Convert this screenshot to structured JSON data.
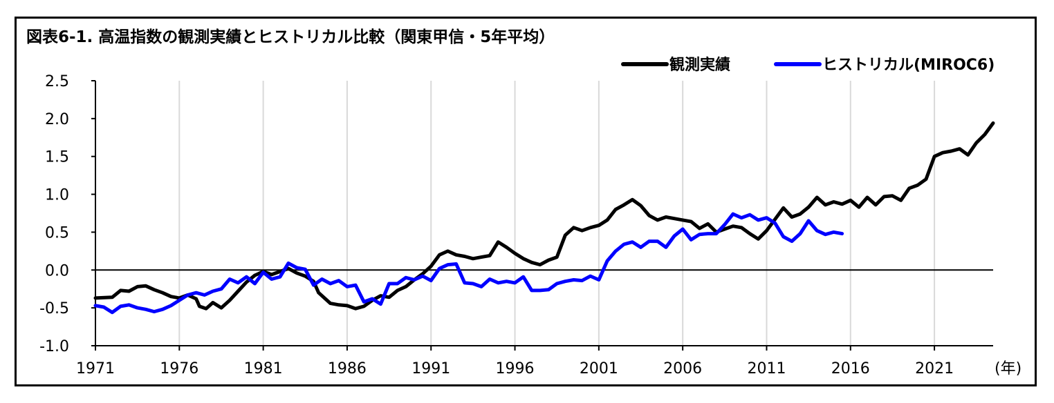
{
  "chart_data": {
    "type": "line",
    "title": "図表6-1. 高温指数の観測実績とヒストリカル比較（関東甲信・5年平均）",
    "xlabel": "",
    "ylabel": "",
    "x_unit": "(年)",
    "xlim": [
      1971,
      2024.5
    ],
    "ylim": [
      -1.0,
      2.5
    ],
    "x_ticks": [
      1971,
      1976,
      1981,
      1986,
      1991,
      1996,
      2001,
      2006,
      2011,
      2016,
      2021
    ],
    "y_ticks": [
      2.5,
      2.0,
      1.5,
      1.0,
      0.5,
      0.0,
      -0.5,
      -1.0
    ],
    "y_tick_labels": [
      "2.5",
      "2.0",
      "1.5",
      "1.0",
      "0.5",
      "0.0",
      "-0.5",
      "-1.0"
    ],
    "grid": "vertical",
    "legend": "top-right",
    "series": [
      {
        "name": "観測実績",
        "color": "#000000",
        "points": [
          [
            1971.0,
            -0.37
          ],
          [
            1972.0,
            -0.36
          ],
          [
            1972.5,
            -0.27
          ],
          [
            1973.0,
            -0.28
          ],
          [
            1973.5,
            -0.22
          ],
          [
            1974.0,
            -0.21
          ],
          [
            1974.5,
            -0.26
          ],
          [
            1975.0,
            -0.3
          ],
          [
            1975.5,
            -0.35
          ],
          [
            1976.0,
            -0.37
          ],
          [
            1976.5,
            -0.33
          ],
          [
            1977.0,
            -0.38
          ],
          [
            1977.2,
            -0.48
          ],
          [
            1977.6,
            -0.51
          ],
          [
            1978.0,
            -0.43
          ],
          [
            1978.5,
            -0.5
          ],
          [
            1979.0,
            -0.4
          ],
          [
            1979.5,
            -0.28
          ],
          [
            1980.0,
            -0.16
          ],
          [
            1980.5,
            -0.07
          ],
          [
            1981.0,
            -0.02
          ],
          [
            1981.5,
            -0.06
          ],
          [
            1982.0,
            -0.02
          ],
          [
            1982.5,
            0.02
          ],
          [
            1983.0,
            -0.04
          ],
          [
            1983.5,
            -0.08
          ],
          [
            1984.0,
            -0.15
          ],
          [
            1984.3,
            -0.3
          ],
          [
            1984.7,
            -0.38
          ],
          [
            1985.0,
            -0.44
          ],
          [
            1985.5,
            -0.46
          ],
          [
            1986.0,
            -0.47
          ],
          [
            1986.5,
            -0.51
          ],
          [
            1987.0,
            -0.48
          ],
          [
            1987.5,
            -0.4
          ],
          [
            1988.0,
            -0.34
          ],
          [
            1988.5,
            -0.36
          ],
          [
            1989.0,
            -0.27
          ],
          [
            1989.5,
            -0.22
          ],
          [
            1990.0,
            -0.13
          ],
          [
            1990.5,
            -0.05
          ],
          [
            1991.0,
            0.05
          ],
          [
            1991.5,
            0.2
          ],
          [
            1992.0,
            0.25
          ],
          [
            1992.5,
            0.2
          ],
          [
            1993.0,
            0.18
          ],
          [
            1993.5,
            0.15
          ],
          [
            1994.0,
            0.17
          ],
          [
            1994.5,
            0.19
          ],
          [
            1995.0,
            0.37
          ],
          [
            1995.5,
            0.3
          ],
          [
            1996.0,
            0.22
          ],
          [
            1996.5,
            0.15
          ],
          [
            1997.0,
            0.1
          ],
          [
            1997.5,
            0.07
          ],
          [
            1998.0,
            0.13
          ],
          [
            1998.5,
            0.17
          ],
          [
            1999.0,
            0.46
          ],
          [
            1999.5,
            0.56
          ],
          [
            2000.0,
            0.52
          ],
          [
            2000.5,
            0.56
          ],
          [
            2001.0,
            0.59
          ],
          [
            2001.5,
            0.66
          ],
          [
            2002.0,
            0.8
          ],
          [
            2002.5,
            0.86
          ],
          [
            2003.0,
            0.93
          ],
          [
            2003.5,
            0.85
          ],
          [
            2004.0,
            0.72
          ],
          [
            2004.5,
            0.66
          ],
          [
            2005.0,
            0.7
          ],
          [
            2005.5,
            0.68
          ],
          [
            2006.0,
            0.66
          ],
          [
            2006.5,
            0.64
          ],
          [
            2007.0,
            0.55
          ],
          [
            2007.5,
            0.61
          ],
          [
            2008.0,
            0.5
          ],
          [
            2008.5,
            0.54
          ],
          [
            2009.0,
            0.58
          ],
          [
            2009.5,
            0.56
          ],
          [
            2010.0,
            0.48
          ],
          [
            2010.5,
            0.41
          ],
          [
            2011.0,
            0.52
          ],
          [
            2011.5,
            0.67
          ],
          [
            2012.0,
            0.82
          ],
          [
            2012.5,
            0.7
          ],
          [
            2013.0,
            0.74
          ],
          [
            2013.5,
            0.83
          ],
          [
            2014.0,
            0.96
          ],
          [
            2014.5,
            0.86
          ],
          [
            2015.0,
            0.9
          ],
          [
            2015.5,
            0.87
          ],
          [
            2016.0,
            0.92
          ],
          [
            2016.5,
            0.83
          ],
          [
            2017.0,
            0.96
          ],
          [
            2017.5,
            0.86
          ],
          [
            2018.0,
            0.97
          ],
          [
            2018.5,
            0.98
          ],
          [
            2019.0,
            0.92
          ],
          [
            2019.5,
            1.08
          ],
          [
            2020.0,
            1.12
          ],
          [
            2020.5,
            1.2
          ],
          [
            2021.0,
            1.5
          ],
          [
            2021.5,
            1.55
          ],
          [
            2022.0,
            1.57
          ],
          [
            2022.5,
            1.6
          ],
          [
            2023.0,
            1.52
          ],
          [
            2023.5,
            1.68
          ],
          [
            2024.0,
            1.79
          ],
          [
            2024.5,
            1.94
          ]
        ]
      },
      {
        "name": "ヒストリカル(MIROC6)",
        "color": "#0000ff",
        "points": [
          [
            1971.0,
            -0.47
          ],
          [
            1971.5,
            -0.49
          ],
          [
            1972.0,
            -0.56
          ],
          [
            1972.5,
            -0.48
          ],
          [
            1973.0,
            -0.46
          ],
          [
            1973.5,
            -0.5
          ],
          [
            1974.0,
            -0.52
          ],
          [
            1974.5,
            -0.55
          ],
          [
            1975.0,
            -0.52
          ],
          [
            1975.5,
            -0.47
          ],
          [
            1976.0,
            -0.4
          ],
          [
            1976.5,
            -0.33
          ],
          [
            1977.0,
            -0.3
          ],
          [
            1977.5,
            -0.33
          ],
          [
            1978.0,
            -0.28
          ],
          [
            1978.5,
            -0.25
          ],
          [
            1979.0,
            -0.12
          ],
          [
            1979.5,
            -0.17
          ],
          [
            1980.0,
            -0.09
          ],
          [
            1980.5,
            -0.18
          ],
          [
            1981.0,
            -0.03
          ],
          [
            1981.5,
            -0.12
          ],
          [
            1982.0,
            -0.09
          ],
          [
            1982.5,
            0.09
          ],
          [
            1983.0,
            0.03
          ],
          [
            1983.5,
            0.01
          ],
          [
            1984.0,
            -0.2
          ],
          [
            1984.5,
            -0.12
          ],
          [
            1985.0,
            -0.18
          ],
          [
            1985.5,
            -0.14
          ],
          [
            1986.0,
            -0.22
          ],
          [
            1986.5,
            -0.2
          ],
          [
            1987.0,
            -0.42
          ],
          [
            1987.5,
            -0.38
          ],
          [
            1988.0,
            -0.45
          ],
          [
            1988.5,
            -0.18
          ],
          [
            1989.0,
            -0.18
          ],
          [
            1989.5,
            -0.1
          ],
          [
            1990.0,
            -0.13
          ],
          [
            1990.5,
            -0.08
          ],
          [
            1991.0,
            -0.14
          ],
          [
            1991.5,
            0.02
          ],
          [
            1992.0,
            0.07
          ],
          [
            1992.5,
            0.08
          ],
          [
            1993.0,
            -0.17
          ],
          [
            1993.5,
            -0.18
          ],
          [
            1994.0,
            -0.22
          ],
          [
            1994.5,
            -0.12
          ],
          [
            1995.0,
            -0.17
          ],
          [
            1995.5,
            -0.15
          ],
          [
            1996.0,
            -0.17
          ],
          [
            1996.5,
            -0.09
          ],
          [
            1997.0,
            -0.27
          ],
          [
            1997.5,
            -0.27
          ],
          [
            1998.0,
            -0.26
          ],
          [
            1998.5,
            -0.18
          ],
          [
            1999.0,
            -0.15
          ],
          [
            1999.5,
            -0.13
          ],
          [
            2000.0,
            -0.14
          ],
          [
            2000.5,
            -0.08
          ],
          [
            2001.0,
            -0.13
          ],
          [
            2001.5,
            0.12
          ],
          [
            2002.0,
            0.25
          ],
          [
            2002.5,
            0.34
          ],
          [
            2003.0,
            0.37
          ],
          [
            2003.5,
            0.3
          ],
          [
            2004.0,
            0.38
          ],
          [
            2004.5,
            0.38
          ],
          [
            2005.0,
            0.3
          ],
          [
            2005.5,
            0.45
          ],
          [
            2006.0,
            0.54
          ],
          [
            2006.5,
            0.4
          ],
          [
            2007.0,
            0.47
          ],
          [
            2007.5,
            0.48
          ],
          [
            2008.0,
            0.48
          ],
          [
            2008.5,
            0.6
          ],
          [
            2009.0,
            0.74
          ],
          [
            2009.5,
            0.69
          ],
          [
            2010.0,
            0.73
          ],
          [
            2010.5,
            0.66
          ],
          [
            2011.0,
            0.69
          ],
          [
            2011.5,
            0.62
          ],
          [
            2012.0,
            0.44
          ],
          [
            2012.5,
            0.38
          ],
          [
            2013.0,
            0.48
          ],
          [
            2013.5,
            0.65
          ],
          [
            2014.0,
            0.52
          ],
          [
            2014.5,
            0.47
          ],
          [
            2015.0,
            0.5
          ],
          [
            2015.5,
            0.48
          ]
        ]
      }
    ]
  }
}
